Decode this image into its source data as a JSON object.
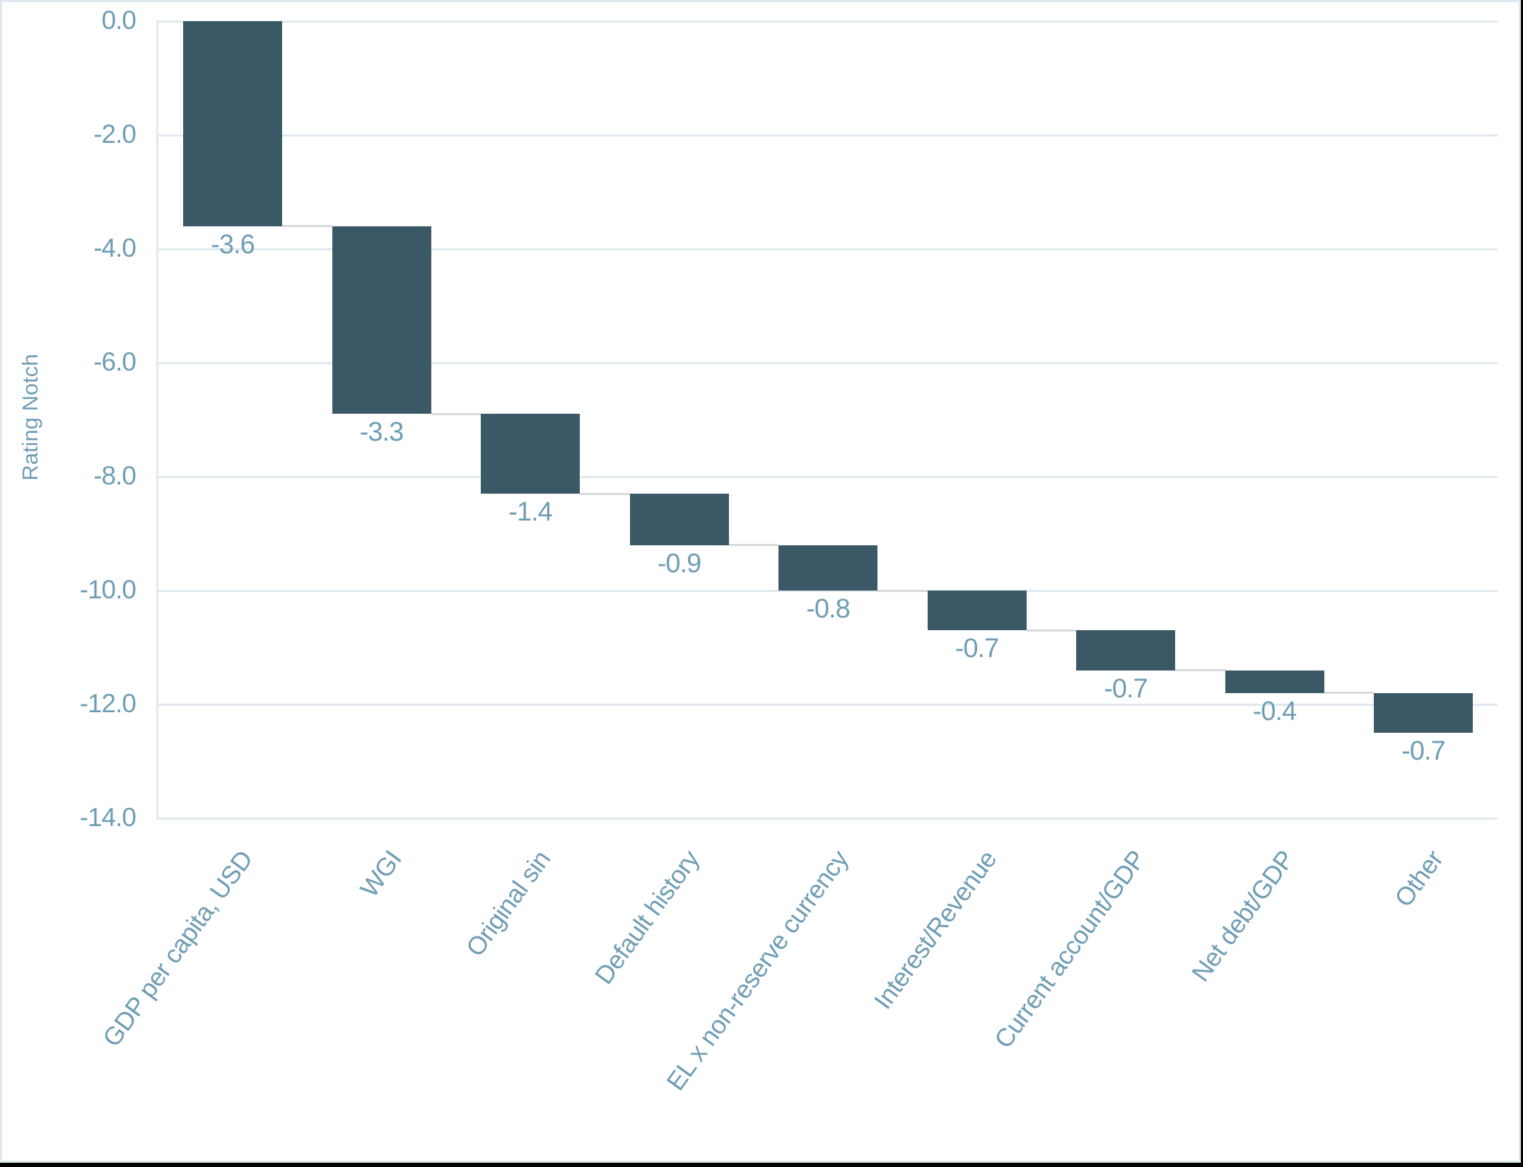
{
  "chart_data": {
    "type": "bar",
    "subtype": "waterfall",
    "title": "",
    "xlabel": "",
    "ylabel": "Rating Notch",
    "ylim": [
      -14.0,
      0.0
    ],
    "yticks": [
      "0.0",
      "-2.0",
      "-4.0",
      "-6.0",
      "-8.0",
      "-10.0",
      "-12.0",
      "-14.0"
    ],
    "grid": true,
    "legend": null,
    "categories": [
      "GDP per capita, USD",
      "WGI",
      "Original sin",
      "Default history",
      "EL x non-reserve currency",
      "Interest/Revenue",
      "Current account/GDP",
      "Net debt/GDP",
      "Other"
    ],
    "values": [
      -3.6,
      -3.3,
      -1.4,
      -0.9,
      -0.8,
      -0.7,
      -0.7,
      -0.4,
      -0.7
    ],
    "value_labels": [
      "-3.6",
      "-3.3",
      "-1.4",
      "-0.9",
      "-0.8",
      "-0.7",
      "-0.7",
      "-0.4",
      "-0.7"
    ],
    "cumulative_start": [
      0.0,
      -3.6,
      -6.9,
      -8.3,
      -9.2,
      -10.0,
      -10.7,
      -11.4,
      -11.8
    ],
    "cumulative_end": [
      -3.6,
      -6.9,
      -8.3,
      -9.2,
      -10.0,
      -10.7,
      -11.4,
      -11.8,
      -12.5
    ],
    "colors": {
      "bar": "#3b5866",
      "connector": "#d9d9d9",
      "grid": "#dfe9ee",
      "text": "#6f9db5"
    }
  }
}
